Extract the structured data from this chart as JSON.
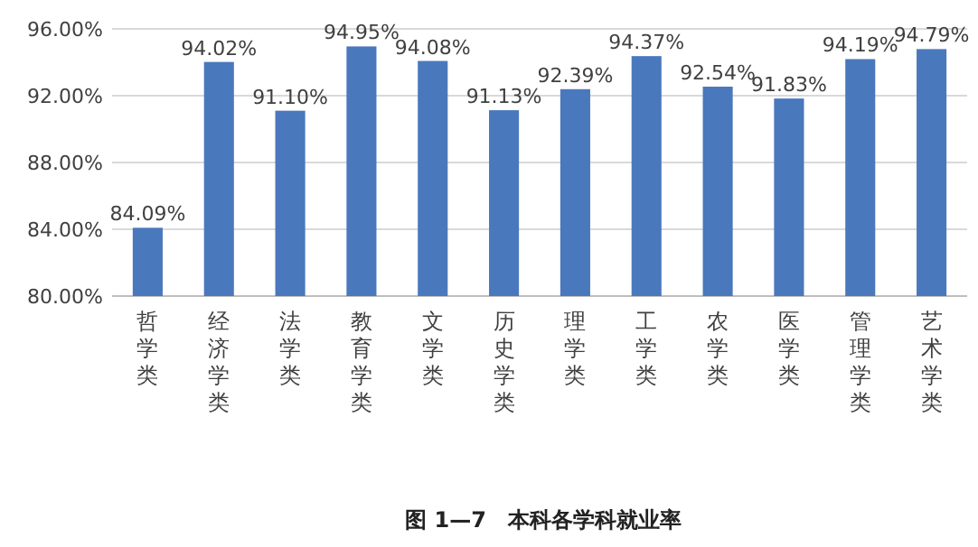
{
  "chart_data": {
    "type": "bar",
    "title": "图 1—7　本科各学科就业率",
    "categories": [
      "哲学类",
      "经济学类",
      "法学类",
      "教育学类",
      "文学类",
      "历史学类",
      "理学类",
      "工学类",
      "农学类",
      "医学类",
      "管理学类",
      "艺术学类"
    ],
    "values": [
      84.09,
      94.02,
      91.1,
      94.95,
      94.08,
      91.13,
      92.39,
      94.37,
      92.54,
      91.83,
      94.19,
      94.79
    ],
    "value_labels": [
      "84.09%",
      "94.02%",
      "91.10%",
      "94.95%",
      "94.08%",
      "91.13%",
      "92.39%",
      "94.37%",
      "92.54%",
      "91.83%",
      "94.19%",
      "94.79%"
    ],
    "color": "#4a78bd",
    "ylim": [
      80,
      96
    ],
    "yticks": [
      {
        "value": 80,
        "label": "80.00%"
      },
      {
        "value": 84,
        "label": "84.00%"
      },
      {
        "value": 88,
        "label": "88.00%"
      },
      {
        "value": 92,
        "label": "92.00%"
      },
      {
        "value": 96,
        "label": "96.00%"
      }
    ],
    "grid": "y"
  }
}
